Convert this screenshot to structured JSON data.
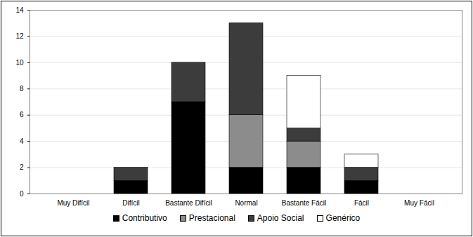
{
  "chart_data": {
    "type": "bar",
    "stacked": true,
    "categories": [
      "Muy Difícil",
      "Difícil",
      "Bastante Difícil",
      "Normal",
      "Bastante Fácil",
      "Fácil",
      "Muy Fácil"
    ],
    "series": [
      {
        "name": "Contributivo",
        "color": "#000000",
        "values": [
          0,
          1,
          7,
          2,
          2,
          1,
          0
        ]
      },
      {
        "name": "Prestacional",
        "color": "#8c8c8c",
        "values": [
          0,
          0,
          0,
          4,
          2,
          0,
          0
        ]
      },
      {
        "name": "Apoio Social",
        "color": "#3c3c3c",
        "values": [
          0,
          1,
          3,
          7,
          1,
          1,
          0
        ]
      },
      {
        "name": "Genérico",
        "color": "#ffffff",
        "values": [
          0,
          0,
          0,
          0,
          4,
          1,
          0
        ]
      }
    ],
    "ylim": [
      0,
      14
    ],
    "yticks": [
      0,
      2,
      4,
      6,
      8,
      10,
      12,
      14
    ],
    "grid": true,
    "legend": "bottom"
  }
}
